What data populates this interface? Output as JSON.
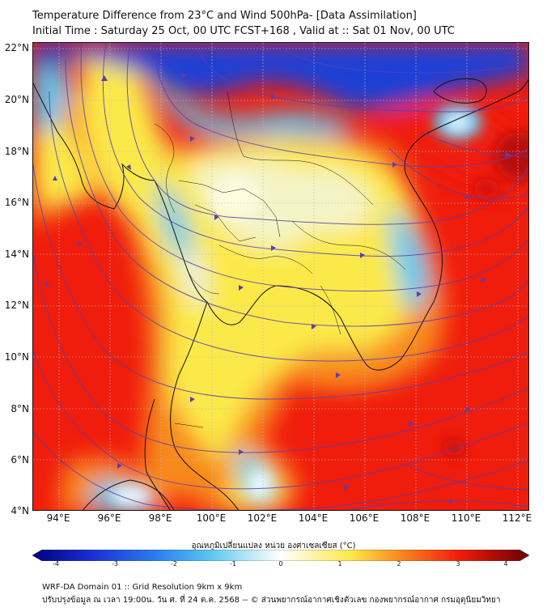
{
  "header": {
    "title": "Temperature Difference from 23°C and Wind 500hPa- [Data Assimilation]",
    "subtitle": "Initial Time : Saturday 25 Oct, 00 UTC FCST+168 , Valid at ::  Sat 01 Nov, 00 UTC"
  },
  "map": {
    "lat_labels": [
      "22°N",
      "20°N",
      "18°N",
      "16°N",
      "14°N",
      "12°N",
      "10°N",
      "8°N",
      "6°N",
      "4°N"
    ],
    "lon_labels": [
      "94°E",
      "96°E",
      "98°E",
      "100°E",
      "102°E",
      "104°E",
      "106°E",
      "108°E",
      "110°E",
      "112°E"
    ],
    "extent": {
      "lon_min": 93,
      "lon_max": 112.5,
      "lat_min": 4,
      "lat_max": 22.2
    },
    "colors": {
      "cold": "#1a3fd6",
      "cool": "#5ac8f0",
      "neutral": "#f4f4c8",
      "warm": "#fbe94a",
      "orange": "#f88a1c",
      "hot": "#f01c0c",
      "dark": "#b80808",
      "streamline": "#5a3fb0"
    }
  },
  "colorbar": {
    "label": "อุณหภูมิเปลี่ยนแปลง หน่วย องศาเซลเซียส (°C)",
    "ticks": [
      "-4",
      "-3",
      "-2",
      "-1",
      "0",
      "1",
      "2",
      "3",
      "4"
    ],
    "range": [
      -4,
      4
    ]
  },
  "footer": {
    "line1": "WRF-DA Domain 01 :: Grid Resolution 9km x 9km",
    "line2": "ปรับปรุงข้อมูล ณ เวลา 19:00น. วัน ศ. ที่ 24 ต.ค. 2568 -- © ส่วนพยากรณ์อากาศเชิงตัวเลข กองพยากรณ์อากาศ กรมอุตุนิยมวิทยา"
  }
}
